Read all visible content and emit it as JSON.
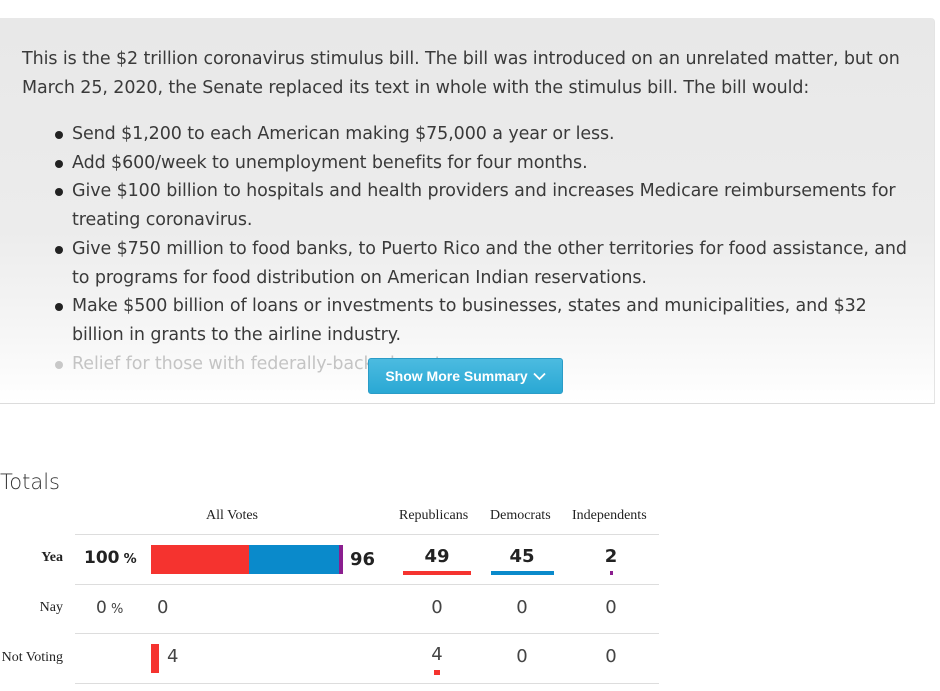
{
  "summary": {
    "intro": "This is the $2 trillion coronavirus stimulus bill. The bill was introduced on an unrelated matter, but on March 25, 2020, the Senate replaced its text in whole with the stimulus bill. The bill would:",
    "bullets": [
      "Send $1,200 to each American making $75,000 a year or less.",
      "Add $600/week to unemployment benefits for four months.",
      "Give $100 billion to hospitals and health providers and increases Medicare reimbursements for treating coronavirus.",
      "Give $750 million to food banks, to Puerto Rico and the other territories for food assistance, and to programs for food distribution on American Indian reservations.",
      "Make $500 billion of loans or investments to businesses, states and municipalities, and $32 billion in grants to the airline industry.",
      "Relief for those with federally-backed mortgages"
    ],
    "show_more_label": "Show More Summary"
  },
  "totals": {
    "title": "Totals",
    "headers": {
      "all_votes": "All Votes",
      "republicans": "Republicans",
      "democrats": "Democrats",
      "independents": "Independents"
    },
    "rows": {
      "yea": {
        "label": "Yea",
        "percent": "100",
        "percent_sign": "%",
        "total": "96",
        "republicans": "49",
        "democrats": "45",
        "independents": "2"
      },
      "nay": {
        "label": "Nay",
        "percent": "0",
        "percent_sign": "%",
        "total": "0",
        "republicans": "0",
        "democrats": "0",
        "independents": "0"
      },
      "not_voting": {
        "label": "Not Voting",
        "total": "4",
        "republicans": "4",
        "democrats": "0",
        "independents": "0"
      }
    },
    "colors": {
      "republican": "#f5332f",
      "democrat": "#0a8acb",
      "independent": "#8b1e8f"
    }
  }
}
